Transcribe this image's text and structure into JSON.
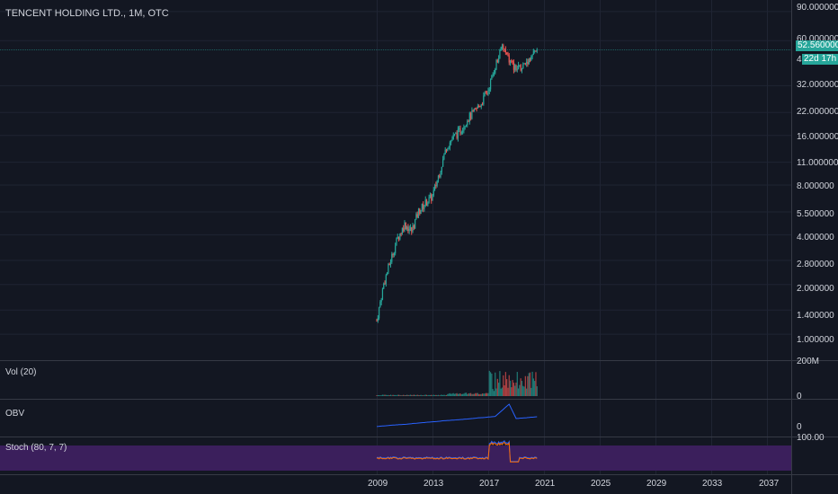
{
  "symbol_title": "TENCENT HOLDING LTD., 1M, OTC",
  "price_axis": [
    "90.000000",
    "60.000000",
    "32.000000",
    "22.000000",
    "16.000000",
    "11.000000",
    "8.000000",
    "5.500000",
    "4.000000",
    "2.800000",
    "2.000000",
    "1.400000",
    "1.000000"
  ],
  "last_price": "52.560000",
  "countdown": "22d 17h",
  "countdown_prefix": "4",
  "time_axis": [
    "2009",
    "2013",
    "2017",
    "2021",
    "2025",
    "2029",
    "2033",
    "2037"
  ],
  "volume": {
    "title": "Vol (20)",
    "top": "200M",
    "bottom": "0"
  },
  "obv": {
    "title": "OBV",
    "bottom": "0"
  },
  "stoch": {
    "title": "Stoch (80, 7, 7)",
    "top": "100.00"
  },
  "colors": {
    "up": "#26a69a",
    "down": "#ef5350",
    "obv": "#2962ff",
    "stoch_k": "#2962ff",
    "stoch_d": "#ff6d00",
    "band": "#3b1f5c",
    "accent": "#26a69a"
  },
  "chart_data": {
    "type": "line",
    "title": "TENCENT HOLDING LTD., 1M, OTC",
    "y_scale": "log",
    "ylim": [
      0.9,
      95
    ],
    "x": [
      2009.0,
      2009.5,
      2010.0,
      2010.5,
      2011.0,
      2011.5,
      2012.0,
      2012.5,
      2013.0,
      2013.5,
      2014.0,
      2014.5,
      2015.0,
      2015.5,
      2016.0,
      2016.5,
      2017.0,
      2017.5,
      2018.0,
      2018.5,
      2019.0,
      2019.5,
      2020.0,
      2020.5
    ],
    "values": [
      1.2,
      2.0,
      2.8,
      3.8,
      4.6,
      4.2,
      5.5,
      6.2,
      6.8,
      9.5,
      13.5,
      15.5,
      17.0,
      20.0,
      22.0,
      25.0,
      30.0,
      42.0,
      55.0,
      45.0,
      40.0,
      42.0,
      47.0,
      52.56
    ],
    "last_value": 52.56,
    "grid": true
  }
}
